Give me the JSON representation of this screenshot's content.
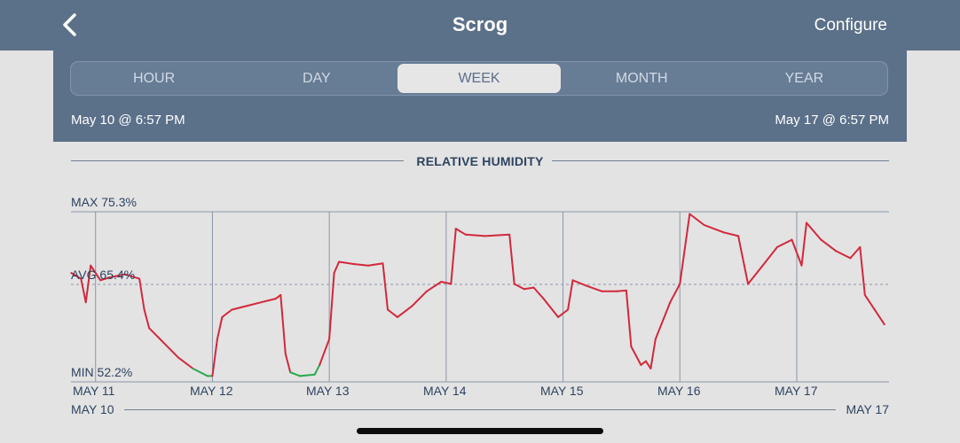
{
  "header": {
    "title": "Scrog",
    "configure_label": "Configure"
  },
  "segments": {
    "items": [
      "HOUR",
      "DAY",
      "WEEK",
      "MONTH",
      "YEAR"
    ],
    "active": "WEEK"
  },
  "range": {
    "start": "May 10 @ 6:57 PM",
    "end": "May 17 @ 6:57 PM"
  },
  "chart": {
    "title": "RELATIVE HUMIDITY",
    "max_label": "MAX 75.3%",
    "avg_label": "AVG 65.4%",
    "min_label": "MIN 52.2%",
    "x_ticks": [
      "MAY 11",
      "MAY 12",
      "MAY 13",
      "MAY 14",
      "MAY 15",
      "MAY 16",
      "MAY 17"
    ],
    "range_start": "MAY 10",
    "range_end": "MAY 17"
  },
  "colors": {
    "header": "#5b7089",
    "line": "#d2283c",
    "low": "#2aa84a",
    "text": "#2e4360"
  },
  "chart_data": {
    "type": "line",
    "title": "RELATIVE HUMIDITY",
    "ylim": [
      52.2,
      75.3
    ],
    "max": 75.3,
    "avg": 65.4,
    "min": 52.2,
    "x_start": "MAY 10 18:57",
    "x_end": "MAY 17 18:57",
    "series": [
      {
        "points": [
          [
            "2023-05-10T19:00",
            67.0
          ],
          [
            "2023-05-10T21:00",
            66.2
          ],
          [
            "2023-05-10T22:00",
            63.0
          ],
          [
            "2023-05-10T23:00",
            68.0
          ],
          [
            "2023-05-11T01:00",
            66.0
          ],
          [
            "2023-05-11T03:00",
            66.4
          ],
          [
            "2023-05-11T06:00",
            66.8
          ],
          [
            "2023-05-11T09:00",
            66.2
          ],
          [
            "2023-05-11T10:00",
            62.0
          ],
          [
            "2023-05-11T11:00",
            59.5
          ],
          [
            "2023-05-11T14:00",
            57.5
          ],
          [
            "2023-05-11T17:00",
            55.5
          ],
          [
            "2023-05-11T20:00",
            54.0
          ],
          [
            "2023-05-11T23:00",
            53.0
          ],
          [
            "2023-05-12T00:00",
            53.0
          ],
          [
            "2023-05-12T01:00",
            58.0
          ],
          [
            "2023-05-12T02:00",
            61.0
          ],
          [
            "2023-05-12T04:00",
            62.0
          ],
          [
            "2023-05-12T07:00",
            62.5
          ],
          [
            "2023-05-12T10:00",
            63.0
          ],
          [
            "2023-05-12T13:00",
            63.5
          ],
          [
            "2023-05-12T14:00",
            64.0
          ],
          [
            "2023-05-12T15:00",
            56.0
          ],
          [
            "2023-05-12T16:00",
            53.5
          ],
          [
            "2023-05-12T18:00",
            53.0
          ],
          [
            "2023-05-12T21:00",
            53.2
          ],
          [
            "2023-05-12T22:00",
            54.5
          ],
          [
            "2023-05-13T00:00",
            58.0
          ],
          [
            "2023-05-13T01:00",
            67.0
          ],
          [
            "2023-05-13T02:00",
            68.5
          ],
          [
            "2023-05-13T05:00",
            68.2
          ],
          [
            "2023-05-13T08:00",
            68.0
          ],
          [
            "2023-05-13T11:00",
            68.3
          ],
          [
            "2023-05-13T12:00",
            62.0
          ],
          [
            "2023-05-13T14:00",
            61.0
          ],
          [
            "2023-05-13T17:00",
            62.5
          ],
          [
            "2023-05-13T20:00",
            64.5
          ],
          [
            "2023-05-13T23:00",
            65.8
          ],
          [
            "2023-05-14T01:00",
            65.5
          ],
          [
            "2023-05-14T02:00",
            73.0
          ],
          [
            "2023-05-14T04:00",
            72.2
          ],
          [
            "2023-05-14T08:00",
            72.0
          ],
          [
            "2023-05-14T13:00",
            72.2
          ],
          [
            "2023-05-14T14:00",
            65.5
          ],
          [
            "2023-05-14T16:00",
            64.8
          ],
          [
            "2023-05-14T18:00",
            65.0
          ],
          [
            "2023-05-14T20:00",
            63.5
          ],
          [
            "2023-05-14T23:00",
            61.0
          ],
          [
            "2023-05-15T01:00",
            62.0
          ],
          [
            "2023-05-15T02:00",
            66.0
          ],
          [
            "2023-05-15T05:00",
            65.2
          ],
          [
            "2023-05-15T08:00",
            64.5
          ],
          [
            "2023-05-15T11:00",
            64.5
          ],
          [
            "2023-05-15T13:00",
            64.6
          ],
          [
            "2023-05-15T14:00",
            57.0
          ],
          [
            "2023-05-15T16:00",
            54.5
          ],
          [
            "2023-05-15T17:00",
            55.0
          ],
          [
            "2023-05-15T18:00",
            54.0
          ],
          [
            "2023-05-15T19:00",
            58.0
          ],
          [
            "2023-05-15T22:00",
            63.0
          ],
          [
            "2023-05-16T00:00",
            65.5
          ],
          [
            "2023-05-16T02:00",
            75.0
          ],
          [
            "2023-05-16T05:00",
            73.5
          ],
          [
            "2023-05-16T09:00",
            72.5
          ],
          [
            "2023-05-16T12:00",
            72.0
          ],
          [
            "2023-05-16T14:00",
            65.5
          ],
          [
            "2023-05-16T17:00",
            68.0
          ],
          [
            "2023-05-16T20:00",
            70.5
          ],
          [
            "2023-05-16T23:00",
            71.5
          ],
          [
            "2023-05-17T01:00",
            68.0
          ],
          [
            "2023-05-17T02:00",
            73.8
          ],
          [
            "2023-05-17T05:00",
            71.5
          ],
          [
            "2023-05-17T08:00",
            70.0
          ],
          [
            "2023-05-17T11:00",
            69.0
          ],
          [
            "2023-05-17T13:00",
            70.5
          ],
          [
            "2023-05-17T14:00",
            64.0
          ],
          [
            "2023-05-17T16:00",
            62.0
          ],
          [
            "2023-05-17T18:00",
            60.0
          ]
        ]
      }
    ]
  }
}
